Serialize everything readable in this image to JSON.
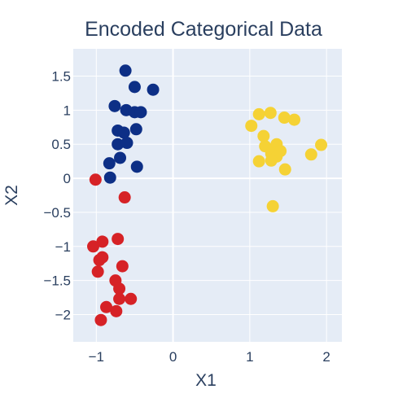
{
  "chart_data": {
    "type": "scatter",
    "title": "Encoded Categorical Data",
    "xlabel": "X1",
    "ylabel": "X2",
    "xlim": [
      -1.3,
      2.2
    ],
    "ylim": [
      -2.4,
      1.9
    ],
    "grid": true,
    "legend": "none",
    "xticks": [
      -1,
      0,
      1,
      2
    ],
    "xtick_labels": [
      "−1",
      "0",
      "1",
      "2"
    ],
    "yticks": [
      1.5,
      1,
      0.5,
      0,
      -0.5,
      -1,
      -1.5,
      -2
    ],
    "ytick_labels": [
      "1.5",
      "1",
      "0.5",
      "0",
      "−0.5",
      "−1",
      "−1.5",
      "−2"
    ],
    "colors": {
      "plot_background": "#e5ecf6",
      "grid": "#ffffff",
      "text": "#2a3f5f"
    },
    "series": [
      {
        "color": "#0d2f86",
        "points": [
          {
            "x": -0.62,
            "y": 1.58
          },
          {
            "x": -0.5,
            "y": 1.34
          },
          {
            "x": -0.26,
            "y": 1.3
          },
          {
            "x": -0.76,
            "y": 1.06
          },
          {
            "x": -0.61,
            "y": 1.0
          },
          {
            "x": -0.5,
            "y": 0.97
          },
          {
            "x": -0.42,
            "y": 0.97
          },
          {
            "x": -0.72,
            "y": 0.7
          },
          {
            "x": -0.64,
            "y": 0.67
          },
          {
            "x": -0.48,
            "y": 0.72
          },
          {
            "x": -0.72,
            "y": 0.5
          },
          {
            "x": -0.6,
            "y": 0.52
          },
          {
            "x": -0.69,
            "y": 0.3
          },
          {
            "x": -0.83,
            "y": 0.22
          },
          {
            "x": -0.47,
            "y": 0.17
          },
          {
            "x": -0.82,
            "y": 0.01
          }
        ]
      },
      {
        "color": "#d62226",
        "points": [
          {
            "x": -1.01,
            "y": -0.02
          },
          {
            "x": -0.63,
            "y": -0.28
          },
          {
            "x": -0.92,
            "y": -0.93
          },
          {
            "x": -0.72,
            "y": -0.89
          },
          {
            "x": -1.04,
            "y": -1.0
          },
          {
            "x": -0.96,
            "y": -1.2
          },
          {
            "x": -0.92,
            "y": -1.16
          },
          {
            "x": -0.66,
            "y": -1.29
          },
          {
            "x": -0.98,
            "y": -1.37
          },
          {
            "x": -0.75,
            "y": -1.5
          },
          {
            "x": -0.7,
            "y": -1.62
          },
          {
            "x": -0.55,
            "y": -1.77
          },
          {
            "x": -0.7,
            "y": -1.77
          },
          {
            "x": -0.87,
            "y": -1.89
          },
          {
            "x": -0.74,
            "y": -1.95
          },
          {
            "x": -0.94,
            "y": -2.08
          }
        ]
      },
      {
        "color": "#f5d235",
        "points": [
          {
            "x": 1.02,
            "y": 0.77
          },
          {
            "x": 1.12,
            "y": 0.94
          },
          {
            "x": 1.27,
            "y": 0.96
          },
          {
            "x": 1.45,
            "y": 0.89
          },
          {
            "x": 1.58,
            "y": 0.86
          },
          {
            "x": 1.18,
            "y": 0.62
          },
          {
            "x": 1.2,
            "y": 0.47
          },
          {
            "x": 1.3,
            "y": 0.42
          },
          {
            "x": 1.35,
            "y": 0.5
          },
          {
            "x": 1.28,
            "y": 0.36
          },
          {
            "x": 1.4,
            "y": 0.4
          },
          {
            "x": 1.35,
            "y": 0.32
          },
          {
            "x": 1.12,
            "y": 0.25
          },
          {
            "x": 1.28,
            "y": 0.26
          },
          {
            "x": 1.46,
            "y": 0.13
          },
          {
            "x": 1.8,
            "y": 0.35
          },
          {
            "x": 1.93,
            "y": 0.49
          },
          {
            "x": 1.3,
            "y": -0.41
          }
        ]
      }
    ]
  }
}
